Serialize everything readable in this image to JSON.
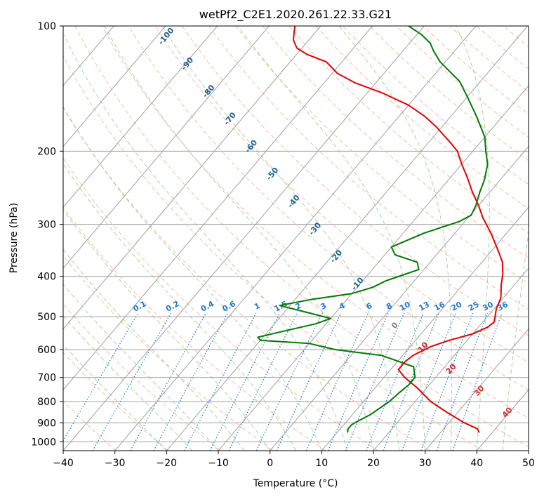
{
  "chart_data": {
    "type": "line",
    "title": "wetPf2_C2E1.2020.261.22.33.G21",
    "xlabel": "Temperature (°C)",
    "ylabel": "Pressure (hPa)",
    "xlim": [
      -40,
      50
    ],
    "ylim": [
      1050,
      100
    ],
    "y_scale": "log",
    "skew": "skew-T log-p",
    "x_ticks": [
      -40,
      -30,
      -20,
      -10,
      0,
      10,
      20,
      30,
      40,
      50
    ],
    "y_ticks": [
      100,
      200,
      300,
      400,
      500,
      600,
      700,
      800,
      900,
      1000
    ],
    "grid": true,
    "colors": {
      "temperature": "#e60000",
      "dewpoint": "#007a00",
      "isotherm": "#a0a0a0",
      "dry_adiabat": "#f4a582",
      "moist_adiabat": "#8fc98f",
      "mixing_ratio": "#1f77d4",
      "isotherm_label": "#1f5f99",
      "red_label": "#d62728",
      "zero_label": "#808080"
    },
    "series": [
      {
        "role": "temperature",
        "points": [
          [
            37.5,
            950
          ],
          [
            36.5,
            930
          ],
          [
            33,
            900
          ],
          [
            28,
            850
          ],
          [
            23,
            800
          ],
          [
            18,
            740
          ],
          [
            14,
            700
          ],
          [
            11.5,
            670
          ],
          [
            11.5,
            640
          ],
          [
            12,
            620
          ],
          [
            14,
            590
          ],
          [
            16.5,
            570
          ],
          [
            20,
            550
          ],
          [
            21.8,
            530
          ],
          [
            22.2,
            515
          ],
          [
            21.5,
            500
          ],
          [
            20.5,
            480
          ],
          [
            19.5,
            450
          ],
          [
            17.5,
            420
          ],
          [
            16,
            395
          ],
          [
            14,
            370
          ],
          [
            11,
            345
          ],
          [
            7,
            315
          ],
          [
            3,
            290
          ],
          [
            0,
            270
          ],
          [
            -3.5,
            250
          ],
          [
            -7,
            230
          ],
          [
            -10,
            215
          ],
          [
            -13,
            200
          ],
          [
            -16,
            190
          ],
          [
            -21,
            175
          ],
          [
            -25,
            165
          ],
          [
            -30,
            155
          ],
          [
            -37,
            145
          ],
          [
            -44,
            137
          ],
          [
            -49,
            130
          ],
          [
            -53,
            122
          ],
          [
            -58,
            117
          ],
          [
            -61,
            113
          ],
          [
            -63,
            108
          ],
          [
            -64,
            104
          ],
          [
            -65,
            100
          ]
        ]
      },
      {
        "role": "dewpoint",
        "points": [
          [
            12,
            950
          ],
          [
            11.5,
            930
          ],
          [
            11.5,
            910
          ],
          [
            12,
            895
          ],
          [
            13.5,
            860
          ],
          [
            15,
            800
          ],
          [
            15.5,
            760
          ],
          [
            16,
            730
          ],
          [
            16,
            700
          ],
          [
            14,
            660
          ],
          [
            6,
            620
          ],
          [
            -4,
            600
          ],
          [
            -10,
            580
          ],
          [
            -20,
            570
          ],
          [
            -21,
            560
          ],
          [
            -12,
            520
          ],
          [
            -10,
            505
          ],
          [
            -15,
            490
          ],
          [
            -22,
            470
          ],
          [
            -17,
            455
          ],
          [
            -10,
            440
          ],
          [
            -7,
            425
          ],
          [
            -5.5,
            410
          ],
          [
            -1,
            385
          ],
          [
            -2.5,
            370
          ],
          [
            -8,
            355
          ],
          [
            -10,
            340
          ],
          [
            -6,
            315
          ],
          [
            -1,
            295
          ],
          [
            0.2,
            285
          ],
          [
            -0.5,
            270
          ],
          [
            -2,
            250
          ],
          [
            -3,
            235
          ],
          [
            -5,
            215
          ],
          [
            -7.5,
            200
          ],
          [
            -10,
            185
          ],
          [
            -15,
            165
          ],
          [
            -20,
            148
          ],
          [
            -24,
            136
          ],
          [
            -31,
            122
          ],
          [
            -34,
            115
          ],
          [
            -36,
            110
          ],
          [
            -39,
            105
          ],
          [
            -43,
            100
          ]
        ]
      }
    ],
    "isotherm_labels": [
      "-100",
      "-90",
      "-80",
      "-70",
      "-60",
      "-50",
      "-40",
      "-30",
      "-20",
      "-10",
      "0",
      "10",
      "20",
      "30",
      "40"
    ],
    "mixing_ratio_labels": [
      "0.1",
      "0.2",
      "0.4",
      "0.6",
      "1",
      "1.5",
      "2",
      "3",
      "4",
      "6",
      "8",
      "10",
      "13",
      "16",
      "20",
      "25",
      "30",
      "36"
    ]
  }
}
